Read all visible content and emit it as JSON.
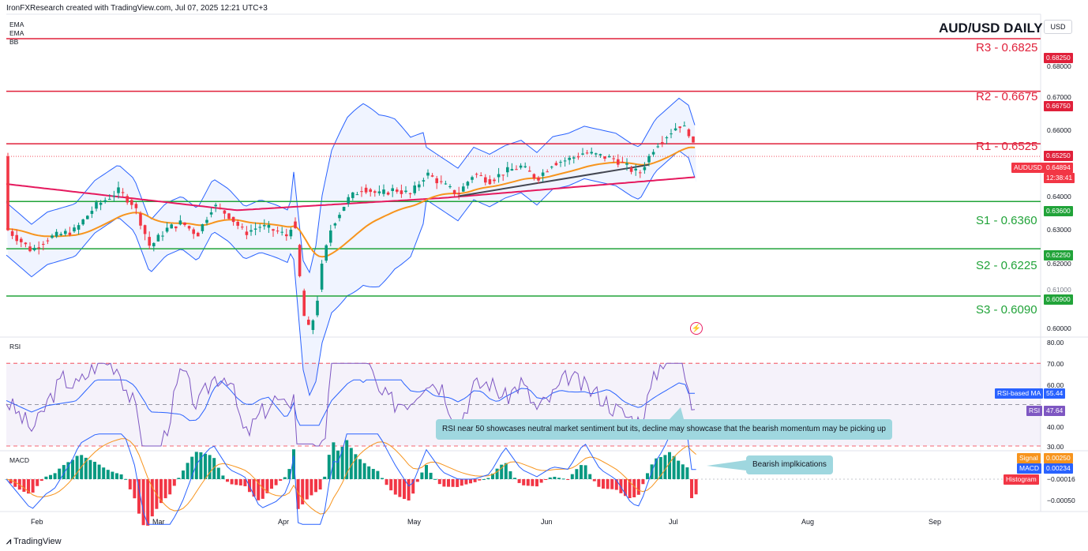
{
  "header": {
    "attribution": "IronFXResearch created with TradingView.com, Jul 07, 2025 12:21 UTC+3"
  },
  "indicators": [
    "EMA",
    "EMA",
    "BB"
  ],
  "title": "AUD/USD DAILY",
  "currency_button": "USD",
  "levels": [
    {
      "label": "R3 - 0.6825",
      "price_tag": "0.68250",
      "kind": "r"
    },
    {
      "label": "R2 - 0.6675",
      "price_tag": "0.66750",
      "kind": "r"
    },
    {
      "label": "R1 - 0.6525",
      "price_tag": "0.65250",
      "kind": "r"
    },
    {
      "label": "S1 - 0.6360",
      "price_tag": "0.63600",
      "kind": "s"
    },
    {
      "label": "S2 - 0.6225",
      "price_tag": "0.62250",
      "kind": "s"
    },
    {
      "label": "S3 - 0.6090",
      "price_tag": "0.60900",
      "kind": "s"
    }
  ],
  "price_axis_ticks": [
    "0.68000",
    "0.67000",
    "0.66000",
    "0.64000",
    "0.63000",
    "0.62000",
    "0.61000",
    "0.60000"
  ],
  "current_price": {
    "symbol": "AUDUSD",
    "price": "0.64894",
    "countdown": "12:38:41"
  },
  "rsi": {
    "label": "RSI",
    "ticks": [
      "80.00",
      "70.00",
      "60.00",
      "50.00",
      "40.00",
      "30.00"
    ],
    "ma_label": "RSI-based MA",
    "ma_value": "55.44",
    "rsi_label": "RSI",
    "rsi_value": "47.64",
    "annotation": "RSI near 50 showcases neutral market sentiment but its, decline may showcase that the bearish momentum may be picking up"
  },
  "macd": {
    "label": "MACD",
    "signal_label": "Signal",
    "signal_value": "0.00250",
    "macd_label": "MACD",
    "macd_value": "0.00234",
    "hist_label": "Histogram",
    "hist_value": "−0.00016",
    "tick": "−0.00050",
    "annotation": "Bearish implkications"
  },
  "x_axis": [
    "Feb",
    "Mar",
    "Apr",
    "May",
    "Jun",
    "Jul",
    "Aug",
    "Sep"
  ],
  "footer": {
    "brand": "TradingView"
  },
  "colors": {
    "resistance": "#e0203a",
    "support": "#21a339",
    "ema_fast": "#f7941d",
    "ema_slow": "#e5195e",
    "bb": "#2962ff",
    "bull": "#089981",
    "bear": "#f23645",
    "callout": "#9fd7df"
  },
  "chart_data": {
    "type": "candlestick",
    "title": "AUD/USD DAILY",
    "symbol": "AUDUSD",
    "x_range": [
      "2025-01-20",
      "2025-09-15"
    ],
    "y_range": [
      0.5975,
      0.6895
    ],
    "series_approx_close": [
      [
        "2025-01-20",
        0.627
      ],
      [
        "2025-02-03",
        0.622
      ],
      [
        "2025-02-17",
        0.636
      ],
      [
        "2025-02-24",
        0.634
      ],
      [
        "2025-03-04",
        0.624
      ],
      [
        "2025-03-18",
        0.634
      ],
      [
        "2025-03-31",
        0.628
      ],
      [
        "2025-04-04",
        0.604
      ],
      [
        "2025-04-09",
        0.598
      ],
      [
        "2025-04-17",
        0.634
      ],
      [
        "2025-05-01",
        0.639
      ],
      [
        "2025-05-15",
        0.641
      ],
      [
        "2025-06-02",
        0.648
      ],
      [
        "2025-06-16",
        0.649
      ],
      [
        "2025-06-23",
        0.642
      ],
      [
        "2025-07-01",
        0.658
      ],
      [
        "2025-07-07",
        0.6489
      ]
    ],
    "rsi_last": 47.64,
    "rsi_ma_last": 55.44,
    "macd_last": 0.00234,
    "signal_last": 0.0025,
    "histogram_last": -0.00016
  }
}
